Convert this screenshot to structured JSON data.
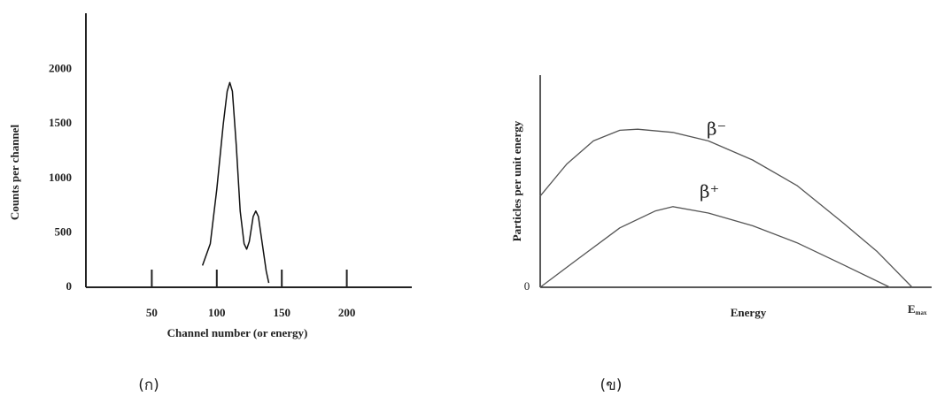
{
  "chart_data": [
    {
      "type": "line",
      "xlabel": "Channel number (or energy)",
      "ylabel": "Counts per channel",
      "x": [
        89,
        95,
        100,
        105,
        108,
        110,
        112,
        115,
        118,
        121,
        123,
        125,
        128,
        130,
        132,
        135,
        138,
        140
      ],
      "series": [
        {
          "color": "#111111",
          "values": [
            200,
            400,
            900,
            1500,
            1800,
            1880,
            1800,
            1300,
            700,
            400,
            350,
            420,
            650,
            700,
            650,
            400,
            150,
            40
          ]
        }
      ],
      "xlim": [
        0,
        250
      ],
      "ylim": [
        0,
        2500
      ],
      "xticks": [
        50,
        100,
        150,
        200
      ],
      "yticks": [
        0,
        500,
        1000,
        1500,
        2000
      ]
    },
    {
      "type": "curves",
      "xlabel": "Energy",
      "ylabel": "Particles per unit energy",
      "origin_label": "0",
      "xlim": [
        0,
        1.1
      ],
      "ylim": [
        0,
        1
      ],
      "xticks": [
        {
          "value": 1,
          "label": "E"
        }
      ],
      "xtick_subscript": "max",
      "series": [
        {
          "name": "β⁻",
          "color": "#555555",
          "x": [
            0,
            0.071,
            0.143,
            0.214,
            0.262,
            0.357,
            0.452,
            0.571,
            0.69,
            0.81,
            0.905,
            1.0
          ],
          "values": [
            0.43,
            0.58,
            0.69,
            0.74,
            0.745,
            0.73,
            0.69,
            0.6,
            0.48,
            0.31,
            0.17,
            0
          ]
        },
        {
          "name": "β⁺",
          "color": "#555555",
          "x": [
            0,
            0.095,
            0.214,
            0.31,
            0.357,
            0.452,
            0.571,
            0.69,
            0.81,
            0.94
          ],
          "values": [
            0,
            0.125,
            0.28,
            0.36,
            0.38,
            0.35,
            0.29,
            0.21,
            0.11,
            0
          ]
        }
      ]
    }
  ],
  "captions": [
    "(ก)",
    "(ข)"
  ]
}
